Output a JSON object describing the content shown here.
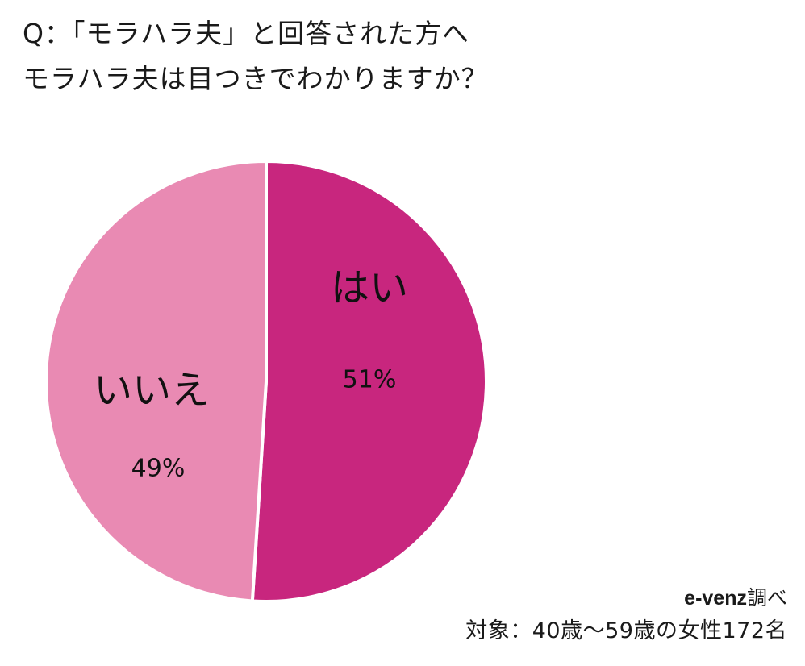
{
  "question": {
    "line1": "Q：「モラハラ夫」と回答された方へ",
    "line2": "モラハラ夫は目つきでわかりますか？"
  },
  "chart_data": {
    "type": "pie",
    "start_angle_deg": 0,
    "direction": "clockwise",
    "slices": [
      {
        "label": "はい",
        "value": 51,
        "value_label": "51%",
        "color": "#c8267e"
      },
      {
        "label": "いいえ",
        "value": 49,
        "value_label": "49%",
        "color": "#e98ab3"
      }
    ],
    "separator_color": "#ffffff"
  },
  "credit": {
    "brand": "e-venz",
    "suffix": "調べ",
    "target": "対象：40歳〜59歳の女性172名"
  }
}
